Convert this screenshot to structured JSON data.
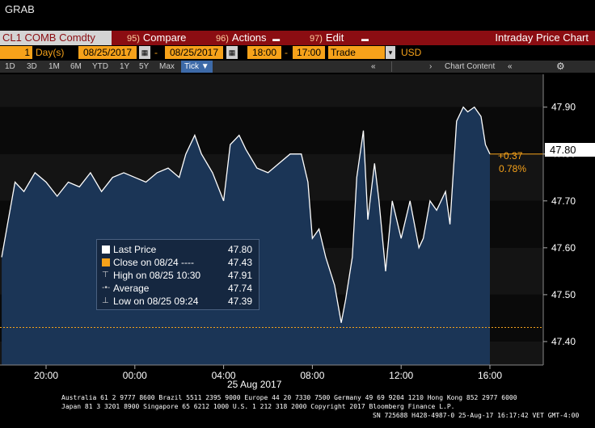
{
  "window": {
    "grab_label": "GRAB"
  },
  "toolbar": {
    "ticker": "CL1 COMB Comdty",
    "compare_num": "95)",
    "compare_label": "Compare",
    "actions_num": "96)",
    "actions_label": "Actions",
    "edit_num": "97)",
    "edit_label": "Edit",
    "title": "Intraday Price Chart"
  },
  "controls": {
    "period_value": "1",
    "period_unit": "Day(s)",
    "start_date": "08/25/2017",
    "end_date": "08/25/2017",
    "start_time": "18:00",
    "end_time": "17:00",
    "field": "Trade",
    "currency": "USD"
  },
  "range_tabs": [
    "1D",
    "3D",
    "1M",
    "6M",
    "YTD",
    "1Y",
    "5Y",
    "Max"
  ],
  "tick_button": "Tick ▼",
  "chart_content_label": "Chart Content",
  "colors": {
    "accent": "#8b0d12",
    "orange": "#f6a21a",
    "area": "#1b3556",
    "line": "#ffffff"
  },
  "chart_data": {
    "type": "area",
    "ylim": [
      47.35,
      47.97
    ],
    "y_ticks": [
      "47.90",
      "47.80",
      "47.70",
      "47.60",
      "47.50",
      "47.40"
    ],
    "x_ticks": [
      "20:00",
      "00:00",
      "04:00",
      "08:00",
      "12:00",
      "16:00"
    ],
    "x_date_label": "25 Aug 2017",
    "last_price": "47.80",
    "change": "+0.37",
    "change_pct": "0.78%",
    "close_prev": 47.43,
    "series": [
      {
        "x": [
          18.0,
          18.3,
          18.6,
          19.0,
          19.5,
          20.0,
          20.5,
          21.0,
          21.5,
          22.0,
          22.5,
          23.0,
          23.5,
          0.0,
          0.5,
          1.0,
          1.5,
          2.0,
          2.3,
          2.7,
          3.0,
          3.5,
          4.0,
          4.3,
          4.7,
          5.0,
          5.5,
          6.0,
          6.5,
          7.0,
          7.5,
          7.8,
          8.0,
          8.3,
          8.6,
          9.0,
          9.3,
          9.5,
          9.8,
          10.0,
          10.3,
          10.5,
          10.8,
          11.0,
          11.3,
          11.6,
          12.0,
          12.4,
          12.8,
          13.0,
          13.3,
          13.6,
          14.0,
          14.2,
          14.5,
          14.8,
          15.0,
          15.3,
          15.6,
          15.8,
          16.0
        ],
        "values": [
          47.58,
          47.66,
          47.74,
          47.72,
          47.76,
          47.74,
          47.71,
          47.74,
          47.73,
          47.76,
          47.72,
          47.75,
          47.76,
          47.75,
          47.74,
          47.76,
          47.77,
          47.75,
          47.8,
          47.84,
          47.8,
          47.76,
          47.7,
          47.82,
          47.84,
          47.81,
          47.77,
          47.76,
          47.78,
          47.8,
          47.8,
          47.74,
          47.62,
          47.64,
          47.58,
          47.52,
          47.44,
          47.49,
          47.58,
          47.75,
          47.85,
          47.66,
          47.78,
          47.7,
          47.55,
          47.7,
          47.62,
          47.7,
          47.6,
          47.62,
          47.7,
          47.68,
          47.72,
          47.65,
          47.87,
          47.9,
          47.89,
          47.9,
          47.88,
          47.82,
          47.8
        ]
      }
    ],
    "legend": [
      {
        "label": "Last Price",
        "value": "47.80"
      },
      {
        "label": "Close on 08/24 ----",
        "value": "47.43"
      },
      {
        "label": "High on 08/25 10:30",
        "value": "47.91"
      },
      {
        "label": "Average",
        "value": "47.74"
      },
      {
        "label": "Low on 08/25 09:24",
        "value": "47.39"
      }
    ]
  },
  "footer": {
    "line1": "Australia 61 2 9777 8600 Brazil 5511 2395 9000 Europe 44 20 7330 7500 Germany 49 69 9204 1210 Hong Kong 852 2977 6000",
    "line2": "Japan 81 3 3201 8900         Singapore 65 6212 1000         U.S. 1 212 318 2000              Copyright 2017 Bloomberg Finance L.P.",
    "line3": "SN 725688 H428-4987-0 25-Aug-17 16:17:42 VET  GMT-4:00"
  }
}
